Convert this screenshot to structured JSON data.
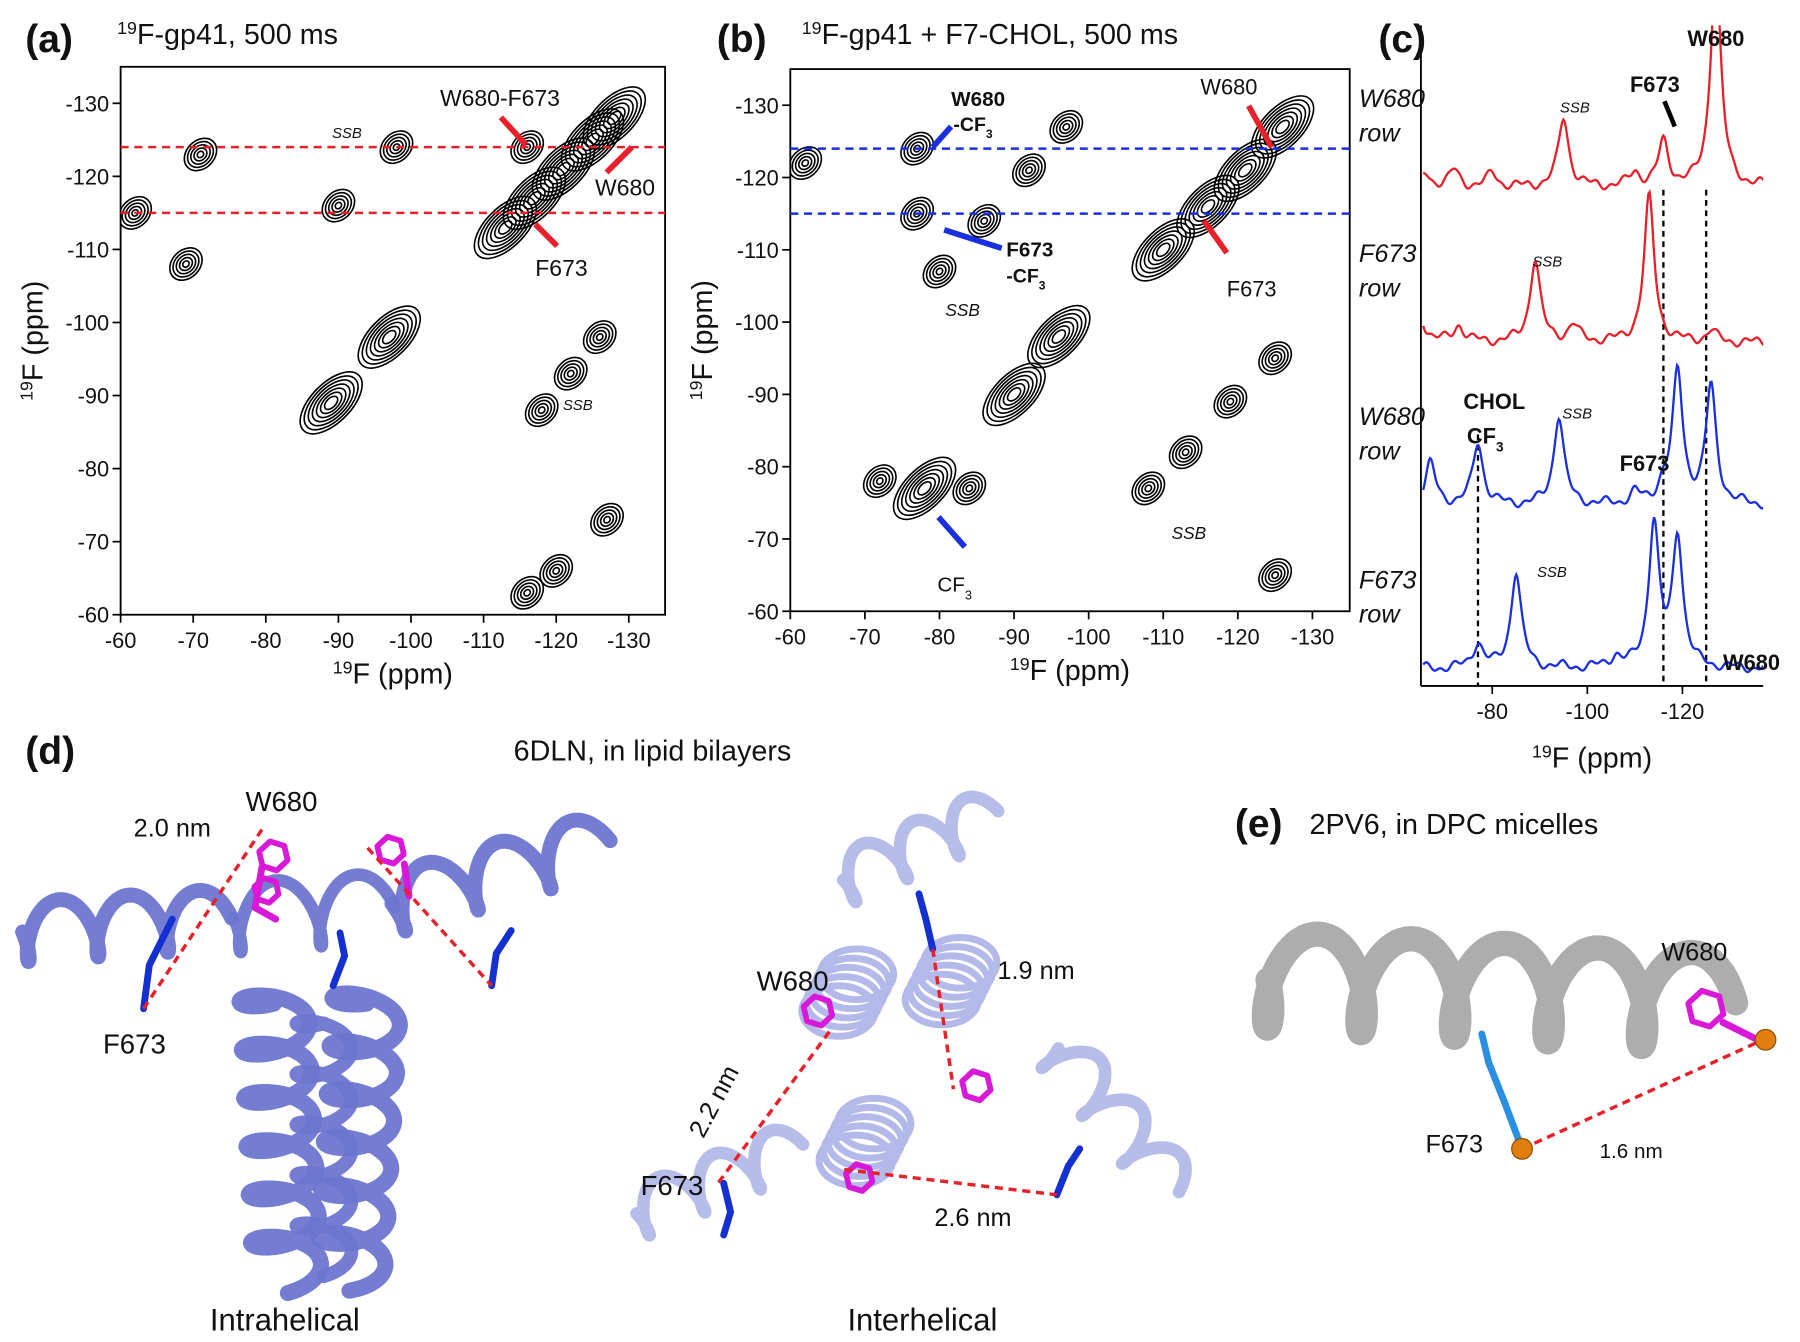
{
  "panels": {
    "a": {
      "label": "(a)",
      "title": {
        "sup": "19",
        "text": "F-gp41, 500 ms"
      },
      "xlabel": {
        "sup": "19",
        "text": "F (ppm)"
      },
      "ylabel": {
        "sup": "19",
        "text": "F (ppm)"
      },
      "xlim": [
        -60,
        -135
      ],
      "ylim": [
        -60,
        -135
      ],
      "xticks": [
        -60,
        -70,
        -80,
        -90,
        -100,
        -110,
        -120,
        -130
      ],
      "yticks": [
        -60,
        -70,
        -80,
        -90,
        -100,
        -110,
        -120,
        -130
      ],
      "row_color": "#e8202a",
      "rows": [
        -124,
        -115
      ],
      "peaks": [
        {
          "x": -113,
          "y": -113
        },
        {
          "x": -117,
          "y": -117
        },
        {
          "x": -121,
          "y": -121
        },
        {
          "x": -125,
          "y": -125
        },
        {
          "x": -128,
          "y": -128
        },
        {
          "x": -116,
          "y": -124
        },
        {
          "x": -98,
          "y": -124
        },
        {
          "x": -90,
          "y": -116
        },
        {
          "x": -62,
          "y": -115
        },
        {
          "x": -71,
          "y": -123
        },
        {
          "x": -69,
          "y": -108
        },
        {
          "x": -97,
          "y": -98
        },
        {
          "x": -89,
          "y": -89
        },
        {
          "x": -118,
          "y": -88
        },
        {
          "x": -122,
          "y": -93
        },
        {
          "x": -126,
          "y": -98
        },
        {
          "x": -127,
          "y": -73
        },
        {
          "x": -120,
          "y": -66
        },
        {
          "x": -116,
          "y": -63
        }
      ],
      "annotations": [
        "W680-F673",
        "W680",
        "F673",
        "SSB",
        "SSB"
      ]
    },
    "b": {
      "label": "(b)",
      "title": {
        "sup": "19",
        "text": "F-gp41 + F7-CHOL, 500 ms"
      },
      "xlabel": {
        "sup": "19",
        "text": "F (ppm)"
      },
      "ylabel": {
        "sup": "19",
        "text": "F (ppm)"
      },
      "xlim": [
        -60,
        -135
      ],
      "ylim": [
        -60,
        -135
      ],
      "xticks": [
        -60,
        -70,
        -80,
        -90,
        -100,
        -110,
        -120,
        -130
      ],
      "yticks": [
        -60,
        -70,
        -80,
        -90,
        -100,
        -110,
        -120,
        -130
      ],
      "row_color": "#1a2fe0",
      "rows": [
        -124,
        -115
      ],
      "peaks": [
        {
          "x": -77,
          "y": -124
        },
        {
          "x": -77,
          "y": -115
        },
        {
          "x": -80,
          "y": -107
        },
        {
          "x": -86,
          "y": -114
        },
        {
          "x": -92,
          "y": -121
        },
        {
          "x": -97,
          "y": -127
        },
        {
          "x": -78,
          "y": -77
        },
        {
          "x": -72,
          "y": -78
        },
        {
          "x": -84,
          "y": -77
        },
        {
          "x": -90,
          "y": -90
        },
        {
          "x": -96,
          "y": -98
        },
        {
          "x": -62,
          "y": -122
        },
        {
          "x": -108,
          "y": -77
        },
        {
          "x": -113,
          "y": -82
        },
        {
          "x": -119,
          "y": -89
        },
        {
          "x": -125,
          "y": -95
        },
        {
          "x": -110,
          "y": -110
        },
        {
          "x": -116,
          "y": -116
        },
        {
          "x": -121,
          "y": -121
        },
        {
          "x": -126,
          "y": -127
        },
        {
          "x": -125,
          "y": -65
        }
      ],
      "annotations": [
        "W680",
        {
          "text": "-CF",
          "sub": "3"
        },
        "F673",
        {
          "text": "-CF",
          "sub": "3"
        },
        "SSB",
        {
          "text": "CF",
          "sub": "3"
        },
        "W680",
        "F673",
        "SSB"
      ]
    },
    "c": {
      "label": "(c)",
      "xlabel": {
        "sup": "19",
        "text": "F (ppm)"
      },
      "xlim": [
        -65,
        -137
      ],
      "xticks": [
        -80,
        -100,
        -120
      ],
      "vlines": [
        -77,
        -116,
        -125
      ],
      "rows": [
        {
          "label": [
            "W680",
            "row"
          ],
          "color": "#e8202a",
          "peaks": [
            {
              "x": -66,
              "h": 0.1
            },
            {
              "x": -72,
              "h": 0.12
            },
            {
              "x": -80,
              "h": 0.1
            },
            {
              "x": -95,
              "h": 0.5
            },
            {
              "x": -110,
              "h": 0.1
            },
            {
              "x": -116,
              "h": 0.32
            },
            {
              "x": -127,
              "h": 1.6
            }
          ]
        },
        {
          "label": [
            "F673",
            "row"
          ],
          "color": "#e8202a",
          "peaks": [
            {
              "x": -64,
              "h": 0.35
            },
            {
              "x": -73,
              "h": 0.12
            },
            {
              "x": -89,
              "h": 0.6
            },
            {
              "x": -97,
              "h": 0.12
            },
            {
              "x": -113,
              "h": 1.05
            },
            {
              "x": -126,
              "h": 0.08
            }
          ]
        },
        {
          "label": [
            "W680",
            "row"
          ],
          "color": "#1a2fe0",
          "peaks": [
            {
              "x": -67,
              "h": 0.3
            },
            {
              "x": -77,
              "h": 0.45
            },
            {
              "x": -94,
              "h": 0.65
            },
            {
              "x": -110,
              "h": 0.08
            },
            {
              "x": -116,
              "h": 0.12
            },
            {
              "x": -119,
              "h": 0.95
            },
            {
              "x": -126,
              "h": 0.85
            }
          ]
        },
        {
          "label": [
            "F673",
            "row"
          ],
          "color": "#1a2fe0",
          "peaks": [
            {
              "x": -77,
              "h": 0.18
            },
            {
              "x": -85,
              "h": 0.7
            },
            {
              "x": -106,
              "h": 0.08
            },
            {
              "x": -114,
              "h": 1.05
            },
            {
              "x": -119,
              "h": 0.95
            }
          ]
        }
      ],
      "annotations": [
        "SSB",
        "SSB",
        "SSB",
        "SSB",
        "F673",
        "W680",
        "CHOL",
        {
          "text": "CF",
          "sub": "3"
        },
        "F673",
        "W680"
      ]
    },
    "d": {
      "label": "(d)",
      "title": "6DLN, in lipid bilayers",
      "intrahelical": {
        "caption": "Intrahelical",
        "labels": [
          "W680",
          "2.0 nm",
          "F673"
        ]
      },
      "interhelical": {
        "caption": "Interhelical",
        "labels": [
          "W680",
          "1.9 nm",
          "2.2 nm",
          "F673",
          "2.6 nm"
        ]
      }
    },
    "e": {
      "label": "(e)",
      "title": "2PV6, in DPC micelles",
      "labels": [
        "W680",
        "F673",
        "1.6 nm"
      ]
    }
  }
}
